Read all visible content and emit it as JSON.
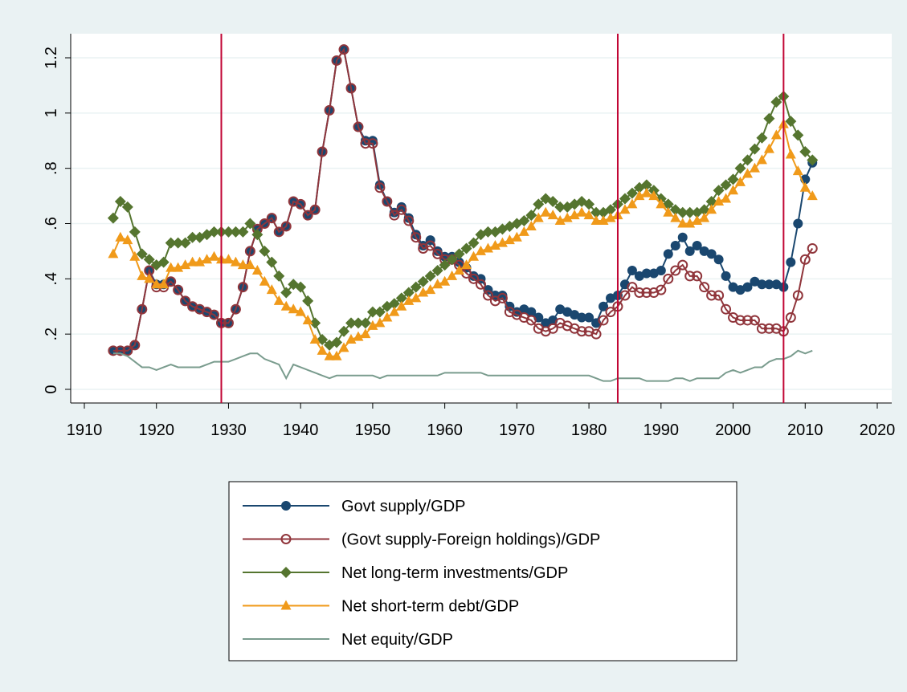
{
  "chart_data": {
    "type": "line",
    "x": [
      1914,
      1915,
      1916,
      1917,
      1918,
      1919,
      1920,
      1921,
      1922,
      1923,
      1924,
      1925,
      1926,
      1927,
      1928,
      1929,
      1930,
      1931,
      1932,
      1933,
      1934,
      1935,
      1936,
      1937,
      1938,
      1939,
      1940,
      1941,
      1942,
      1943,
      1944,
      1945,
      1946,
      1947,
      1948,
      1949,
      1950,
      1951,
      1952,
      1953,
      1954,
      1955,
      1956,
      1957,
      1958,
      1959,
      1960,
      1961,
      1962,
      1963,
      1964,
      1965,
      1966,
      1967,
      1968,
      1969,
      1970,
      1971,
      1972,
      1973,
      1974,
      1975,
      1976,
      1977,
      1978,
      1979,
      1980,
      1981,
      1982,
      1983,
      1984,
      1985,
      1986,
      1987,
      1988,
      1989,
      1990,
      1991,
      1992,
      1993,
      1994,
      1995,
      1996,
      1997,
      1998,
      1999,
      2000,
      2001,
      2002,
      2003,
      2004,
      2005,
      2006,
      2007,
      2008,
      2009,
      2010,
      2011
    ],
    "series": [
      {
        "name": "Govt supply/GDP",
        "color": "#1a476f",
        "marker": "circle",
        "values": [
          0.14,
          0.14,
          0.14,
          0.16,
          0.29,
          0.43,
          0.38,
          0.38,
          0.39,
          0.36,
          0.32,
          0.3,
          0.29,
          0.28,
          0.27,
          0.24,
          0.24,
          0.29,
          0.37,
          0.5,
          0.58,
          0.6,
          0.62,
          0.57,
          0.59,
          0.68,
          0.67,
          0.63,
          0.65,
          0.86,
          1.01,
          1.19,
          1.23,
          1.09,
          0.95,
          0.9,
          0.9,
          0.74,
          0.68,
          0.64,
          0.66,
          0.62,
          0.56,
          0.52,
          0.54,
          0.5,
          0.48,
          0.48,
          0.46,
          0.44,
          0.41,
          0.4,
          0.36,
          0.34,
          0.34,
          0.3,
          0.28,
          0.29,
          0.28,
          0.26,
          0.24,
          0.25,
          0.29,
          0.28,
          0.27,
          0.26,
          0.26,
          0.24,
          0.3,
          0.33,
          0.34,
          0.38,
          0.43,
          0.41,
          0.42,
          0.42,
          0.43,
          0.49,
          0.52,
          0.55,
          0.5,
          0.52,
          0.5,
          0.49,
          0.47,
          0.41,
          0.37,
          0.36,
          0.37,
          0.39,
          0.38,
          0.38,
          0.38,
          0.37,
          0.46,
          0.6,
          0.76,
          0.82
        ]
      },
      {
        "name": "(Govt supply-Foreign holdings)/GDP",
        "color": "#90353b",
        "marker": "hollow-circle",
        "values": [
          0.14,
          0.14,
          0.14,
          0.16,
          0.29,
          0.43,
          0.37,
          0.37,
          0.39,
          0.36,
          0.32,
          0.3,
          0.29,
          0.28,
          0.27,
          0.24,
          0.24,
          0.29,
          0.37,
          0.5,
          0.58,
          0.6,
          0.62,
          0.57,
          0.59,
          0.68,
          0.67,
          0.63,
          0.65,
          0.86,
          1.01,
          1.19,
          1.23,
          1.09,
          0.95,
          0.89,
          0.89,
          0.73,
          0.68,
          0.63,
          0.65,
          0.61,
          0.55,
          0.51,
          0.52,
          0.49,
          0.47,
          0.47,
          0.45,
          0.42,
          0.4,
          0.38,
          0.34,
          0.32,
          0.33,
          0.28,
          0.27,
          0.26,
          0.25,
          0.22,
          0.21,
          0.22,
          0.24,
          0.23,
          0.22,
          0.21,
          0.21,
          0.2,
          0.25,
          0.28,
          0.3,
          0.34,
          0.37,
          0.35,
          0.35,
          0.35,
          0.36,
          0.4,
          0.43,
          0.45,
          0.41,
          0.41,
          0.37,
          0.34,
          0.34,
          0.29,
          0.26,
          0.25,
          0.25,
          0.25,
          0.22,
          0.22,
          0.22,
          0.21,
          0.26,
          0.34,
          0.47,
          0.51
        ]
      },
      {
        "name": "Net long-term investments/GDP",
        "color": "#55752f",
        "marker": "diamond",
        "values": [
          0.62,
          0.68,
          0.66,
          0.57,
          0.49,
          0.47,
          0.45,
          0.46,
          0.53,
          0.53,
          0.53,
          0.55,
          0.55,
          0.56,
          0.57,
          0.57,
          0.57,
          0.57,
          0.57,
          0.6,
          0.56,
          0.5,
          0.46,
          0.41,
          0.35,
          0.38,
          0.37,
          0.32,
          0.24,
          0.18,
          0.16,
          0.17,
          0.21,
          0.24,
          0.24,
          0.24,
          0.28,
          0.28,
          0.3,
          0.31,
          0.33,
          0.35,
          0.37,
          0.39,
          0.41,
          0.43,
          0.45,
          0.47,
          0.49,
          0.51,
          0.53,
          0.56,
          0.57,
          0.57,
          0.58,
          0.59,
          0.6,
          0.61,
          0.63,
          0.67,
          0.69,
          0.68,
          0.66,
          0.66,
          0.67,
          0.68,
          0.67,
          0.64,
          0.64,
          0.65,
          0.67,
          0.69,
          0.71,
          0.73,
          0.74,
          0.72,
          0.69,
          0.67,
          0.65,
          0.64,
          0.64,
          0.64,
          0.65,
          0.68,
          0.72,
          0.74,
          0.76,
          0.8,
          0.83,
          0.87,
          0.91,
          0.98,
          1.04,
          1.06,
          0.97,
          0.92,
          0.86,
          0.83
        ]
      },
      {
        "name": "Net short-term debt/GDP",
        "color": "#f09a1a",
        "marker": "triangle",
        "values": [
          0.49,
          0.55,
          0.54,
          0.48,
          0.41,
          0.4,
          0.38,
          0.38,
          0.44,
          0.44,
          0.45,
          0.46,
          0.46,
          0.47,
          0.48,
          0.47,
          0.47,
          0.46,
          0.45,
          0.45,
          0.43,
          0.39,
          0.36,
          0.32,
          0.3,
          0.29,
          0.28,
          0.25,
          0.18,
          0.14,
          0.12,
          0.12,
          0.15,
          0.18,
          0.19,
          0.2,
          0.23,
          0.24,
          0.26,
          0.28,
          0.3,
          0.32,
          0.33,
          0.35,
          0.36,
          0.38,
          0.39,
          0.41,
          0.43,
          0.45,
          0.48,
          0.5,
          0.51,
          0.52,
          0.53,
          0.54,
          0.55,
          0.57,
          0.59,
          0.62,
          0.64,
          0.63,
          0.61,
          0.62,
          0.63,
          0.64,
          0.63,
          0.61,
          0.61,
          0.62,
          0.63,
          0.65,
          0.67,
          0.7,
          0.71,
          0.7,
          0.67,
          0.64,
          0.62,
          0.6,
          0.6,
          0.61,
          0.62,
          0.65,
          0.68,
          0.69,
          0.72,
          0.75,
          0.78,
          0.8,
          0.83,
          0.87,
          0.92,
          0.96,
          0.85,
          0.79,
          0.73,
          0.7
        ]
      },
      {
        "name": "Net equity/GDP",
        "color": "#7a9c8e",
        "marker": "none",
        "values": [
          0.13,
          0.13,
          0.12,
          0.1,
          0.08,
          0.08,
          0.07,
          0.08,
          0.09,
          0.08,
          0.08,
          0.08,
          0.08,
          0.09,
          0.1,
          0.1,
          0.1,
          0.11,
          0.12,
          0.13,
          0.13,
          0.11,
          0.1,
          0.09,
          0.04,
          0.09,
          0.08,
          0.07,
          0.06,
          0.05,
          0.04,
          0.05,
          0.05,
          0.05,
          0.05,
          0.05,
          0.05,
          0.04,
          0.05,
          0.05,
          0.05,
          0.05,
          0.05,
          0.05,
          0.05,
          0.05,
          0.06,
          0.06,
          0.06,
          0.06,
          0.06,
          0.06,
          0.05,
          0.05,
          0.05,
          0.05,
          0.05,
          0.05,
          0.05,
          0.05,
          0.05,
          0.05,
          0.05,
          0.05,
          0.05,
          0.05,
          0.05,
          0.04,
          0.03,
          0.03,
          0.04,
          0.04,
          0.04,
          0.04,
          0.03,
          0.03,
          0.03,
          0.03,
          0.04,
          0.04,
          0.03,
          0.04,
          0.04,
          0.04,
          0.04,
          0.06,
          0.07,
          0.06,
          0.07,
          0.08,
          0.08,
          0.1,
          0.11,
          0.11,
          0.12,
          0.14,
          0.13,
          0.14
        ]
      }
    ],
    "xlim": [
      1910,
      2020
    ],
    "xticks": [
      1910,
      1920,
      1930,
      1940,
      1950,
      1960,
      1970,
      1980,
      1990,
      2000,
      2010,
      2020
    ],
    "ylim": [
      0,
      1.2
    ],
    "yticks": [
      0,
      {
        "value": 0.2,
        "label": ".2"
      },
      {
        "value": 0.4,
        "label": ".4"
      },
      {
        "value": 0.6,
        "label": ".6"
      },
      {
        "value": 0.8,
        "label": ".8"
      },
      1,
      1.2
    ],
    "vlines": [
      1929,
      1984,
      2007
    ],
    "vline_color": "#c10534",
    "grid": true,
    "legend": "bottom"
  }
}
